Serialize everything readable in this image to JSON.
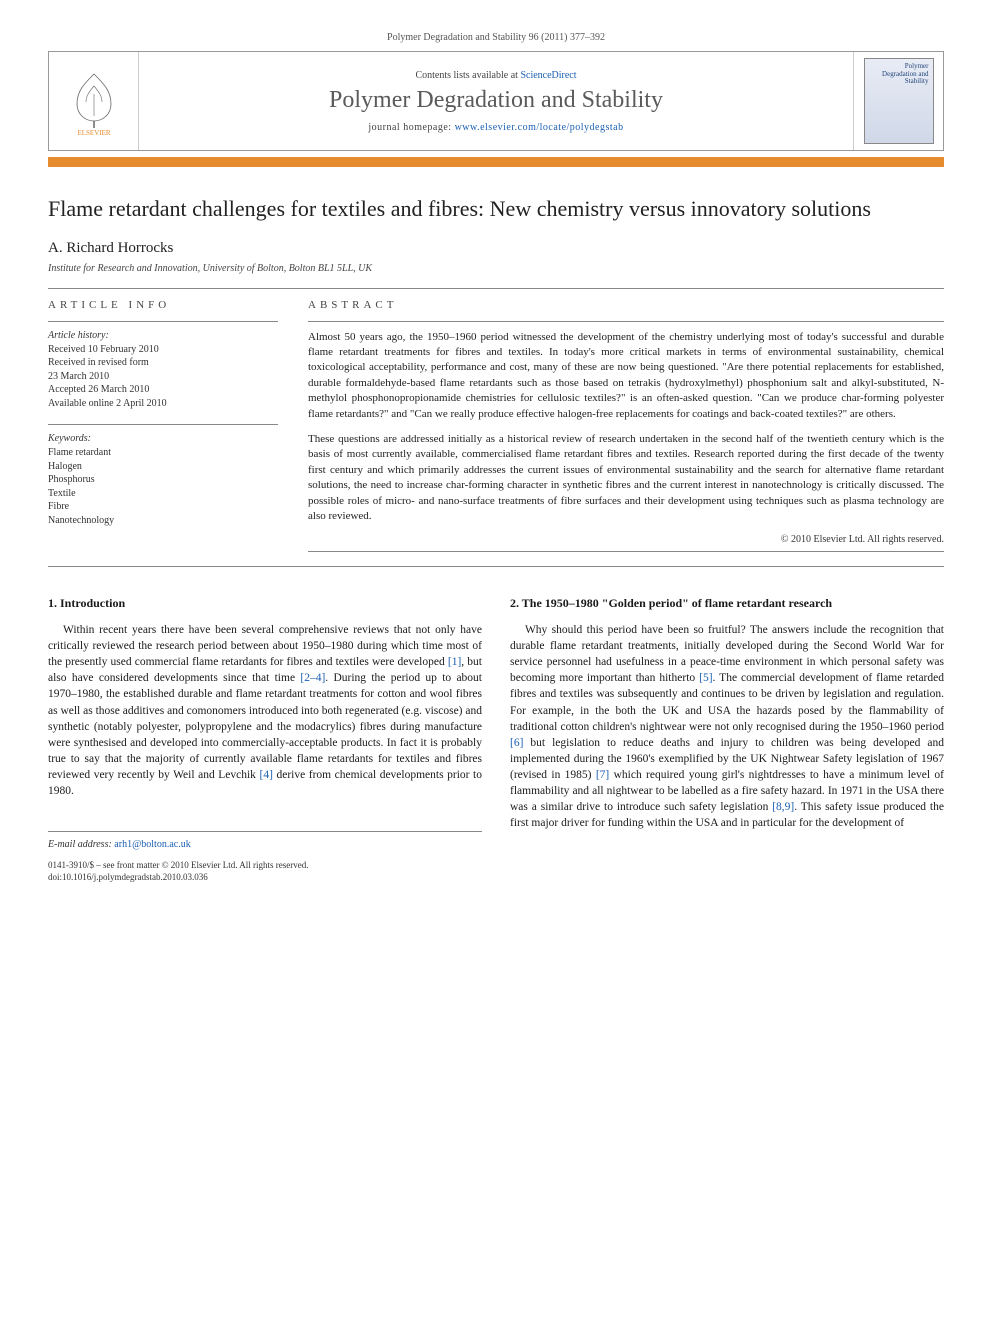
{
  "header": {
    "running_head": "Polymer Degradation and Stability 96 (2011) 377–392",
    "contents_prefix": "Contents lists available at ",
    "contents_link_text": "ScienceDirect",
    "journal_title": "Polymer Degradation and Stability",
    "homepage_prefix": "journal homepage: ",
    "homepage_link_text": "www.elsevier.com/locate/polydegstab",
    "thumb_title": "Polymer Degradation and Stability",
    "orange_bar_color": "#e78b2f"
  },
  "article": {
    "title": "Flame retardant challenges for textiles and fibres: New chemistry versus innovatory solutions",
    "author": "A. Richard Horrocks",
    "affiliation": "Institute for Research and Innovation, University of Bolton, Bolton BL1 5LL, UK"
  },
  "info": {
    "label": "ARTICLE INFO",
    "history_heading": "Article history:",
    "history_lines": [
      "Received 10 February 2010",
      "Received in revised form",
      "23 March 2010",
      "Accepted 26 March 2010",
      "Available online 2 April 2010"
    ],
    "keywords_heading": "Keywords:",
    "keywords": [
      "Flame retardant",
      "Halogen",
      "Phosphorus",
      "Textile",
      "Fibre",
      "Nanotechnology"
    ]
  },
  "abstract": {
    "label": "ABSTRACT",
    "para1": "Almost 50 years ago, the 1950–1960 period witnessed the development of the chemistry underlying most of today's successful and durable flame retardant treatments for fibres and textiles. In today's more critical markets in terms of environmental sustainability, chemical toxicological acceptability, performance and cost, many of these are now being questioned. \"Are there potential replacements for established, durable formaldehyde-based flame retardants such as those based on tetrakis (hydroxylmethyl) phosphonium salt and alkyl-substituted, N-methylol phosphonopropionamide chemistries for cellulosic textiles?\" is an often-asked question. \"Can we produce char-forming polyester flame retardants?\" and \"Can we really produce effective halogen-free replacements for coatings and back-coated textiles?\" are others.",
    "para2": "These questions are addressed initially as a historical review of research undertaken in the second half of the twentieth century which is the basis of most currently available, commercialised flame retardant fibres and textiles. Research reported during the first decade of the twenty first century and which primarily addresses the current issues of environmental sustainability and the search for alternative flame retardant solutions, the need to increase char-forming character in synthetic fibres and the current interest in nanotechnology is critically discussed. The possible roles of micro- and nano-surface treatments of fibre surfaces and their development using techniques such as plasma technology are also reviewed.",
    "copyright": "© 2010 Elsevier Ltd. All rights reserved."
  },
  "body": {
    "sec1_heading": "1. Introduction",
    "sec1_para": "Within recent years there have been several comprehensive reviews that not only have critically reviewed the research period between about 1950–1980 during which time most of the presently used commercial flame retardants for fibres and textiles were developed [1], but also have considered developments since that time [2–4]. During the period up to about 1970–1980, the established durable and flame retardant treatments for cotton and wool fibres as well as those additives and comonomers introduced into both regenerated (e.g. viscose) and synthetic (notably polyester, polypropylene and the modacrylics) fibres during manufacture were synthesised and developed into commercially-acceptable products. In fact it is probably true to say that the majority of currently available flame retardants for textiles and fibres reviewed very recently by Weil and Levchik [4] derive from chemical developments prior to 1980.",
    "sec1_refs": {
      "r1": "[1]",
      "r2_4": "[2–4]",
      "r4": "[4]"
    },
    "sec2_heading": "2. The 1950–1980 \"Golden period\" of flame retardant research",
    "sec2_para": "Why should this period have been so fruitful? The answers include the recognition that durable flame retardant treatments, initially developed during the Second World War for service personnel had usefulness in a peace-time environment in which personal safety was becoming more important than hitherto [5]. The commercial development of flame retarded fibres and textiles was subsequently and continues to be driven by legislation and regulation. For example, in the both the UK and USA the hazards posed by the flammability of traditional cotton children's nightwear were not only recognised during the 1950–1960 period [6] but legislation to reduce deaths and injury to children was being developed and implemented during the 1960's exemplified by the UK Nightwear Safety legislation of 1967 (revised in 1985) [7] which required young girl's nightdresses to have a minimum level of flammability and all nightwear to be labelled as a fire safety hazard. In 1971 in the USA there was a similar drive to introduce such safety legislation [8,9]. This safety issue produced the first major driver for funding within the USA and in particular for the development of",
    "sec2_refs": {
      "r5": "[5]",
      "r6": "[6]",
      "r7": "[7]",
      "r8_9": "[8,9]"
    }
  },
  "footer": {
    "email_label": "E-mail address: ",
    "email": "arh1@bolton.ac.uk",
    "issn_line": "0141-3910/$ – see front matter © 2010 Elsevier Ltd. All rights reserved.",
    "doi_line": "doi:10.1016/j.polymdegradstab.2010.03.036"
  },
  "colors": {
    "link": "#1b5fb3",
    "text": "#1a1a1a",
    "orange": "#e78b2f"
  }
}
